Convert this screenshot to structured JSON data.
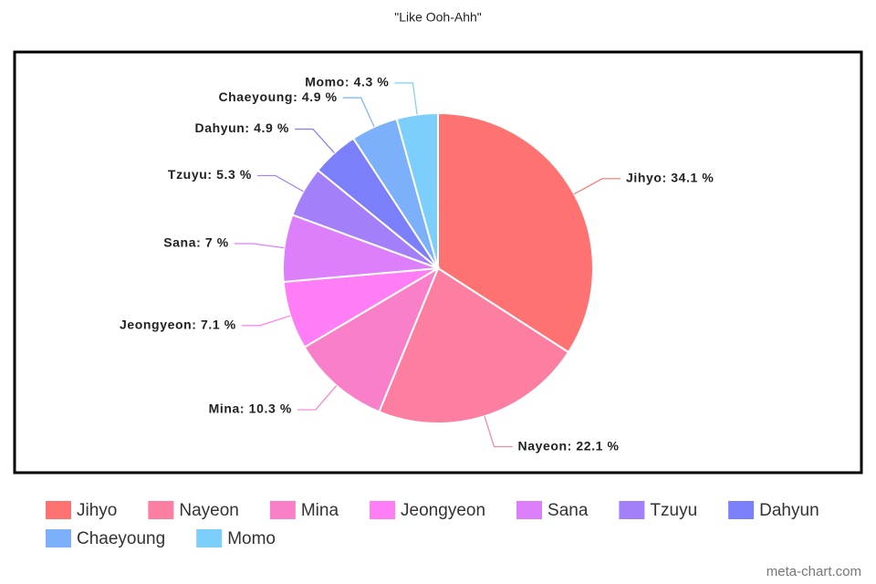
{
  "chart_data": {
    "type": "pie",
    "title": "\"Like Ooh-Ahh\"",
    "categories": [
      "Jihyo",
      "Nayeon",
      "Mina",
      "Jeongyeon",
      "Sana",
      "Tzuyu",
      "Dahyun",
      "Chaeyoung",
      "Momo"
    ],
    "values": [
      34.1,
      22.1,
      10.3,
      7.1,
      7,
      5.3,
      4.9,
      4.9,
      4.3
    ],
    "value_labels": [
      "Jihyo: 34.1 %",
      "Nayeon: 22.1 %",
      "Mina: 10.3 %",
      "Jeongyeon: 7.1 %",
      "Sana: 7 %",
      "Tzuyu: 5.3 %",
      "Dahyun: 4.9 %",
      "Chaeyoung: 4.9 %",
      "Momo: 4.3 %"
    ],
    "colors": [
      "#ff7272",
      "#fc7fa2",
      "#f97fc8",
      "#ff7ef5",
      "#dd7ffa",
      "#a47ffa",
      "#7c7ffa",
      "#7cb0fa",
      "#7ccffa"
    ],
    "legend": "bottom",
    "source": "meta-chart.com"
  }
}
